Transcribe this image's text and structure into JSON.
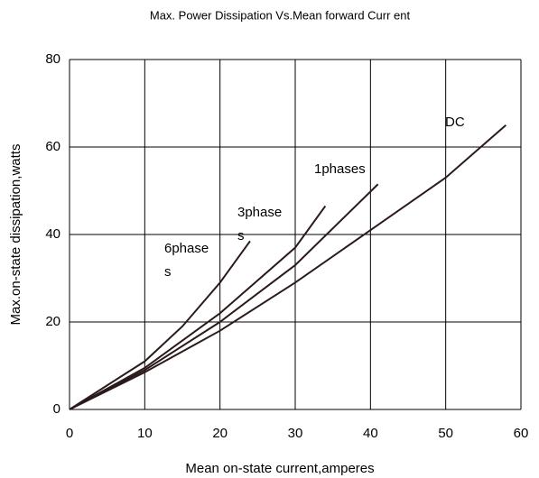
{
  "chart_data": {
    "type": "line",
    "title": "Max. Power Dissipation Vs.Mean forward Curr ent",
    "x_label": "Mean on-state current,amperes",
    "y_label": "Max.on-state dissipation,watts",
    "series": [
      {
        "label": [
          "DC"
        ],
        "color": "#2b1a1a",
        "x": [
          0,
          10,
          20,
          30,
          40,
          50,
          58
        ],
        "values": [
          0,
          8.5,
          18,
          29,
          41,
          53,
          65
        ]
      },
      {
        "label": [
          "1phases"
        ],
        "color": "#2b1a1a",
        "x": [
          0,
          10,
          20,
          30,
          41
        ],
        "values": [
          0,
          9,
          20,
          33,
          51.5
        ]
      },
      {
        "label": [
          "3phase",
          "s"
        ],
        "color": "#2b1a1a",
        "x": [
          0,
          10,
          20,
          30,
          34
        ],
        "values": [
          0,
          9.5,
          22,
          37,
          46.5
        ]
      },
      {
        "label": [
          "6phase",
          "s"
        ],
        "color": "#2b1a1a",
        "x": [
          0,
          10,
          15,
          20,
          24
        ],
        "values": [
          0,
          11,
          19,
          29,
          38.5
        ]
      }
    ],
    "xlim": [
      0,
      60
    ],
    "xticks": [
      0,
      10,
      20,
      30,
      40,
      50,
      60
    ],
    "ylim": [
      0,
      80
    ],
    "yticks": [
      0,
      20,
      40,
      60,
      80
    ],
    "grid": true
  }
}
